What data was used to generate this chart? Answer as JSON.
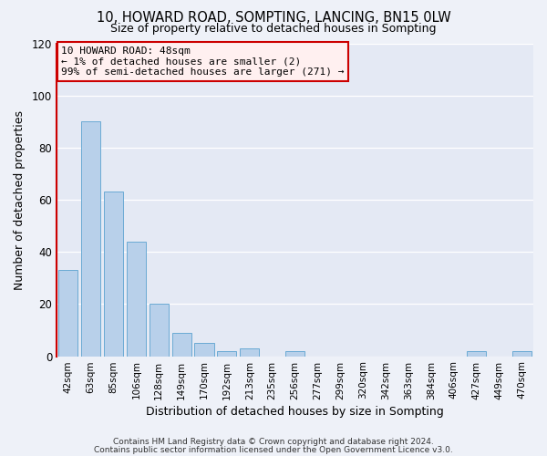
{
  "title": "10, HOWARD ROAD, SOMPTING, LANCING, BN15 0LW",
  "subtitle": "Size of property relative to detached houses in Sompting",
  "xlabel": "Distribution of detached houses by size in Sompting",
  "ylabel": "Number of detached properties",
  "bin_labels": [
    "42sqm",
    "63sqm",
    "85sqm",
    "106sqm",
    "128sqm",
    "149sqm",
    "170sqm",
    "192sqm",
    "213sqm",
    "235sqm",
    "256sqm",
    "277sqm",
    "299sqm",
    "320sqm",
    "342sqm",
    "363sqm",
    "384sqm",
    "406sqm",
    "427sqm",
    "449sqm",
    "470sqm"
  ],
  "bar_heights": [
    33,
    90,
    63,
    44,
    20,
    9,
    5,
    2,
    3,
    0,
    2,
    0,
    0,
    0,
    0,
    0,
    0,
    0,
    2,
    0,
    2
  ],
  "bar_color": "#b8d0ea",
  "bar_edge_color": "#6aaad4",
  "highlight_color": "#cc0000",
  "ylim": [
    0,
    120
  ],
  "yticks": [
    0,
    20,
    40,
    60,
    80,
    100,
    120
  ],
  "annotation_line1": "10 HOWARD ROAD: 48sqm",
  "annotation_line2": "← 1% of detached houses are smaller (2)",
  "annotation_line3": "99% of semi-detached houses are larger (271) →",
  "annotation_box_facecolor": "#fff0f0",
  "annotation_box_edgecolor": "#cc0000",
  "footer_line1": "Contains HM Land Registry data © Crown copyright and database right 2024.",
  "footer_line2": "Contains public sector information licensed under the Open Government Licence v3.0.",
  "bg_color": "#eef1f8",
  "plot_bg_color": "#e4e9f4",
  "grid_color": "#ffffff",
  "title_fontsize": 10.5,
  "subtitle_fontsize": 9,
  "xlabel_fontsize": 9,
  "ylabel_fontsize": 9,
  "tick_fontsize": 7.5,
  "footer_fontsize": 6.5
}
